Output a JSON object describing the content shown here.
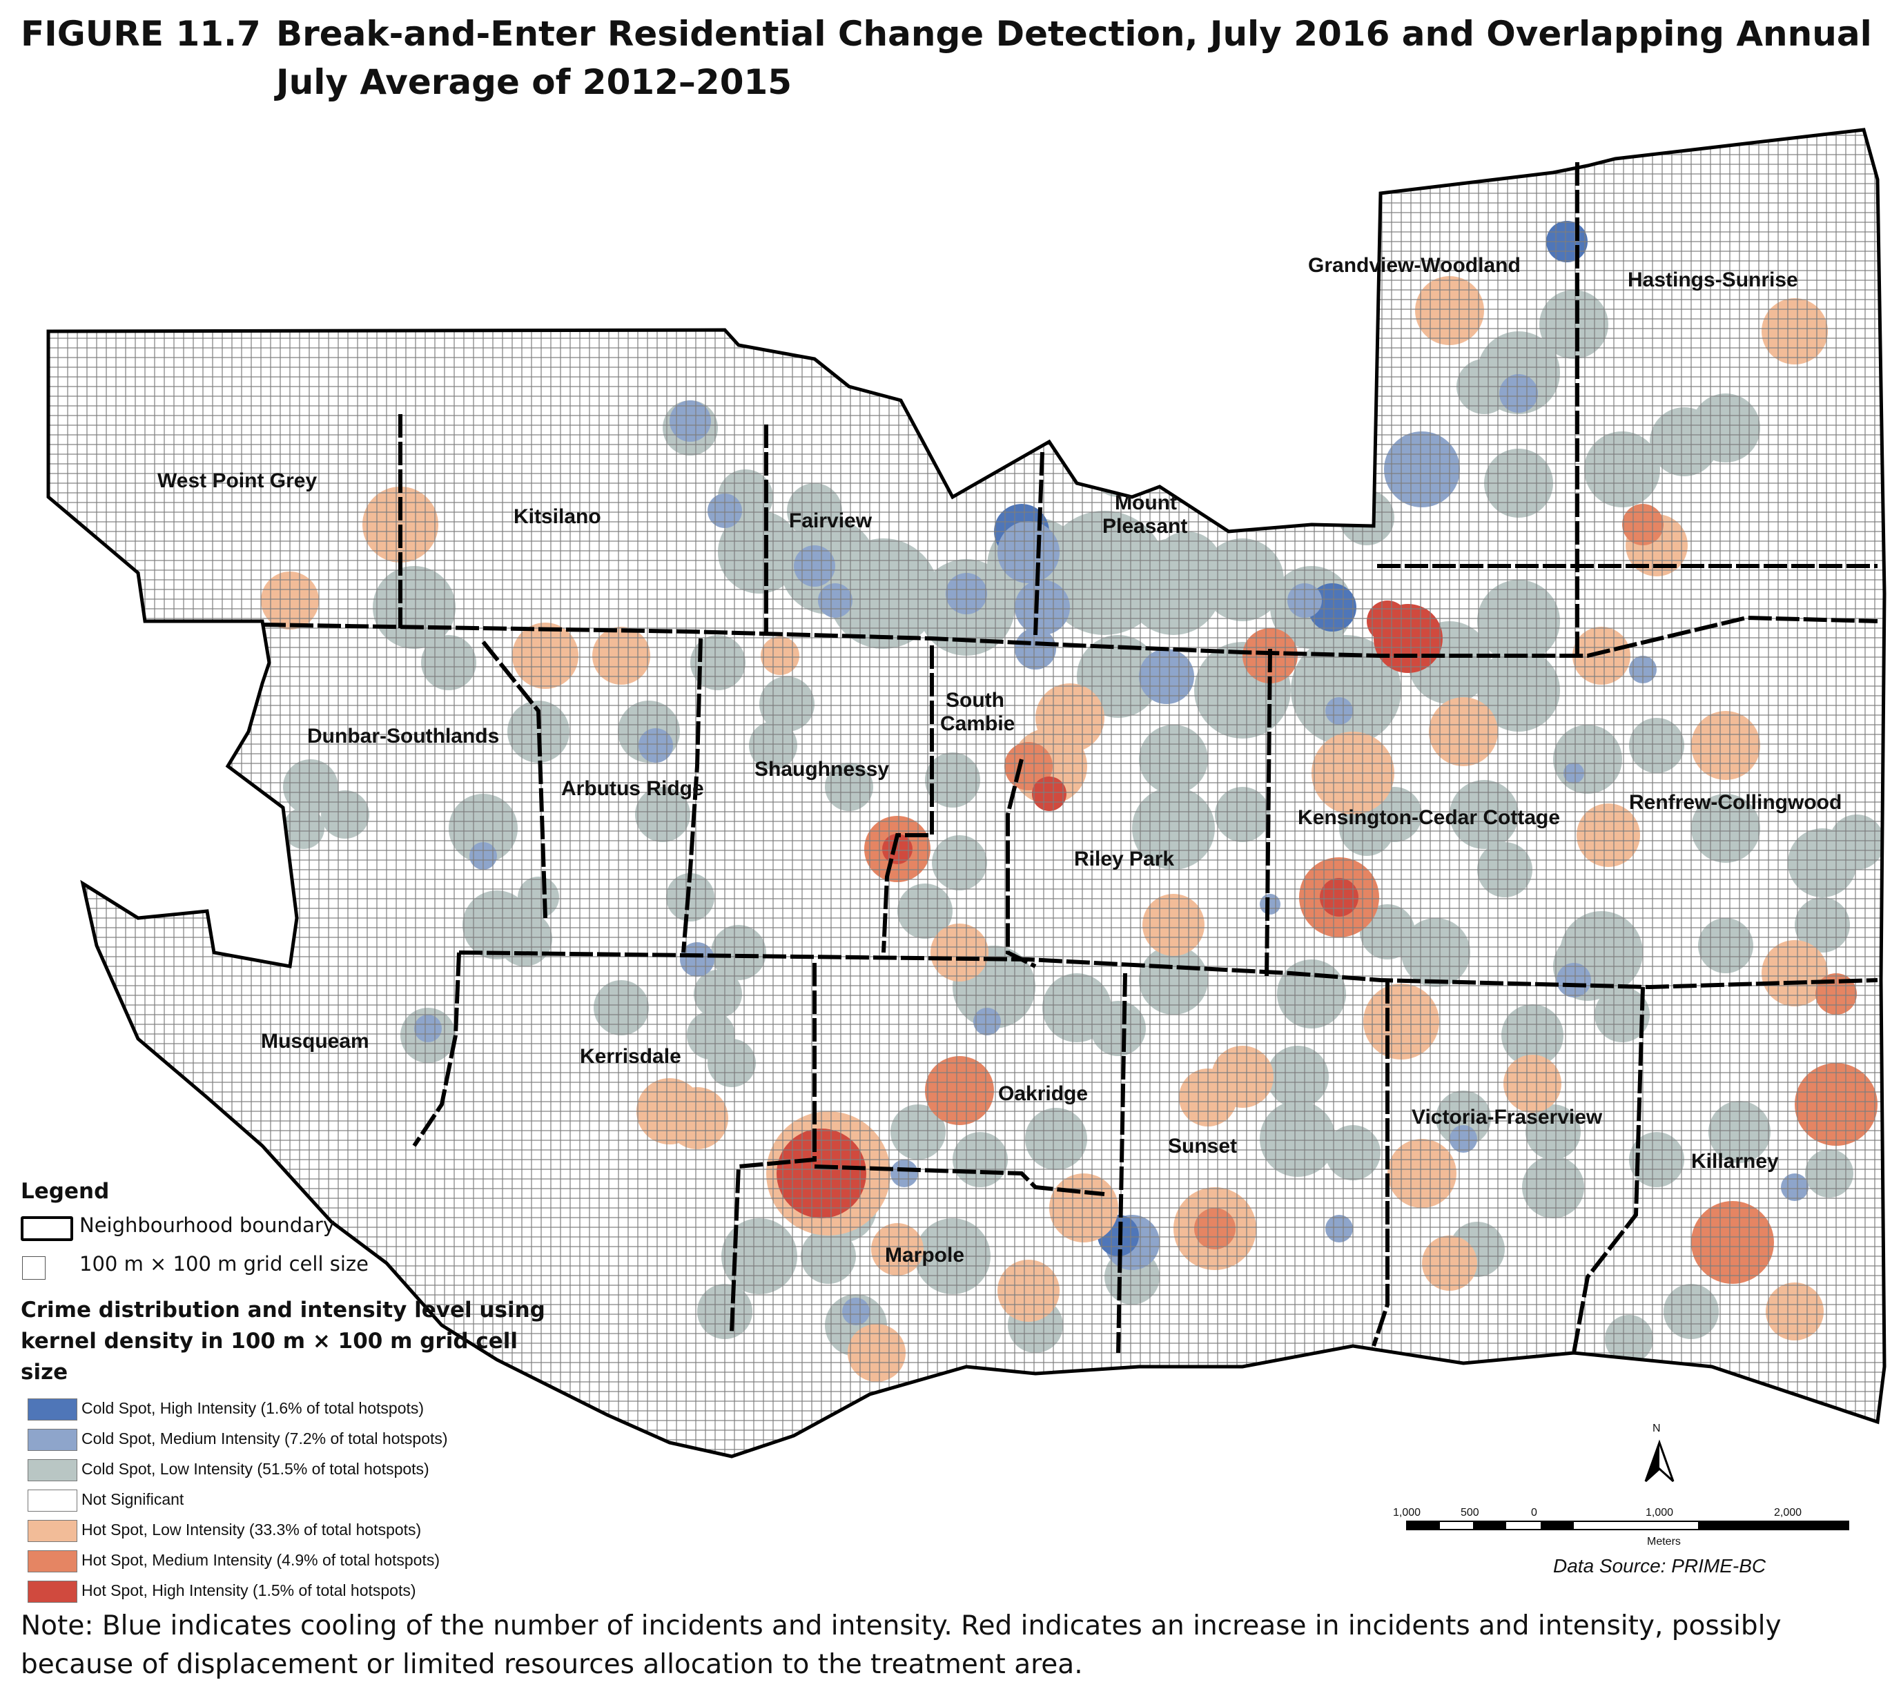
{
  "figure": {
    "number": "FIGURE 11.7",
    "title": "Break-and-Enter Residential Change Detection, July 2016 and Overlapping Annual July Average of 2012–2015"
  },
  "neighbourhoods": [
    {
      "name": "West Point Grey"
    },
    {
      "name": "Kitsilano"
    },
    {
      "name": "Fairview"
    },
    {
      "name": "Mount",
      "name2": "Pleasant"
    },
    {
      "name": "Grandview-Woodland"
    },
    {
      "name": "Hastings-Sunrise"
    },
    {
      "name": "Dunbar-Southlands"
    },
    {
      "name": "Arbutus Ridge"
    },
    {
      "name": "Shaughnessy"
    },
    {
      "name": "South",
      "name2": "Cambie"
    },
    {
      "name": "Riley Park"
    },
    {
      "name": "Kensington-Cedar Cottage"
    },
    {
      "name": "Renfrew-Collingwood"
    },
    {
      "name": "Musqueam"
    },
    {
      "name": "Kerrisdale"
    },
    {
      "name": "Oakridge"
    },
    {
      "name": "Sunset"
    },
    {
      "name": "Victoria-Fraserview"
    },
    {
      "name": "Killarney"
    },
    {
      "name": "Marpole"
    }
  ],
  "legend": {
    "title": "Legend",
    "boundary_label": "Neighbourhood boundary",
    "grid_label": "100 m × 100 m grid cell size",
    "subtitle_line1": "Crime distribution and intensity level using",
    "subtitle_line2": "kernel density in 100 m × 100 m grid cell size",
    "classes": [
      {
        "label": "Cold Spot, High Intensity (1.6% of total hotspots)",
        "color": "#4f76b8"
      },
      {
        "label": "Cold Spot, Medium Intensity (7.2% of total hotspots)",
        "color": "#8ea5cb"
      },
      {
        "label": "Cold Spot, Low Intensity (51.5% of total hotspots)",
        "color": "#b9c6c4"
      },
      {
        "label": "Not Significant",
        "color": "#ffffff"
      },
      {
        "label": "Hot Spot, Low Intensity (33.3% of total hotspots)",
        "color": "#f2bc98"
      },
      {
        "label": "Hot Spot, Medium Intensity (4.9% of total hotspots)",
        "color": "#e58563"
      },
      {
        "label": "Hot Spot, High Intensity (1.5% of total hotspots)",
        "color": "#d04a3e"
      }
    ]
  },
  "north_arrow": "N",
  "scale": {
    "ticks": [
      "1,000",
      "500",
      "0",
      "1,000",
      "2,000"
    ],
    "unit": "Meters"
  },
  "data_source": "Data Source: PRIME-BC",
  "note": "Note: Blue indicates cooling of the number of incidents and intensity. Red indicates an increase in incidents and intensity, possibly because of displacement or limited resources allocation to the treatment area."
}
